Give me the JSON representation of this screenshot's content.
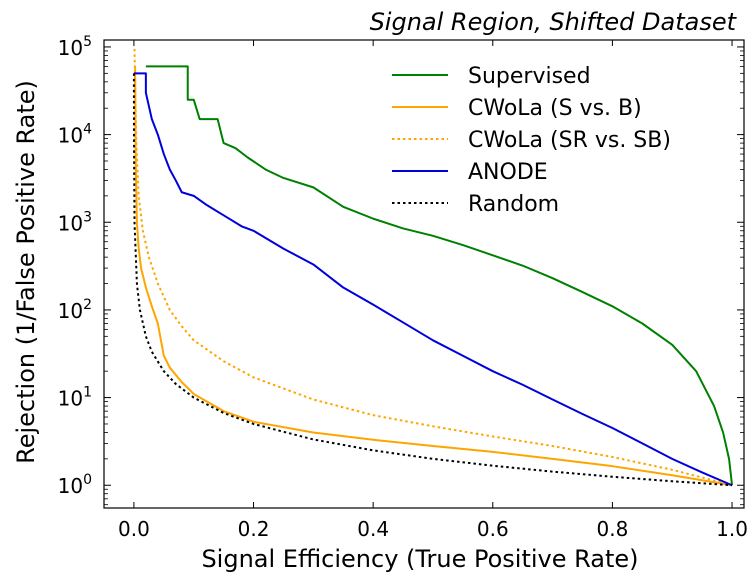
{
  "chart_data": {
    "type": "line",
    "title": "Signal Region, Shifted Dataset",
    "xlabel": "Signal Efficiency (True Positive Rate)",
    "ylabel": "Rejection (1/False Positive Rate)",
    "xlim": [
      -0.05,
      1.02
    ],
    "ylim": [
      0.55,
      120000
    ],
    "yscale": "log",
    "grid": false,
    "legend_position": "top-right",
    "x_ticks": [
      {
        "value": 0.0,
        "label": "0.0"
      },
      {
        "value": 0.2,
        "label": "0.2"
      },
      {
        "value": 0.4,
        "label": "0.4"
      },
      {
        "value": 0.6,
        "label": "0.6"
      },
      {
        "value": 0.8,
        "label": "0.8"
      },
      {
        "value": 1.0,
        "label": "1.0"
      }
    ],
    "y_ticks": [
      {
        "value": 1,
        "base": "10",
        "exp": "0"
      },
      {
        "value": 10,
        "base": "10",
        "exp": "1"
      },
      {
        "value": 100,
        "base": "10",
        "exp": "2"
      },
      {
        "value": 1000,
        "base": "10",
        "exp": "3"
      },
      {
        "value": 10000,
        "base": "10",
        "exp": "4"
      },
      {
        "value": 100000,
        "base": "10",
        "exp": "5"
      }
    ],
    "series": [
      {
        "name": "Supervised",
        "color": "#008000",
        "style": "solid",
        "points": [
          [
            0.02,
            60000
          ],
          [
            0.09,
            60000
          ],
          [
            0.09,
            25000
          ],
          [
            0.1,
            25000
          ],
          [
            0.11,
            15000
          ],
          [
            0.14,
            15000
          ],
          [
            0.15,
            8000
          ],
          [
            0.17,
            7000
          ],
          [
            0.19,
            5500
          ],
          [
            0.22,
            4000
          ],
          [
            0.25,
            3200
          ],
          [
            0.3,
            2500
          ],
          [
            0.35,
            1500
          ],
          [
            0.4,
            1100
          ],
          [
            0.45,
            850
          ],
          [
            0.5,
            700
          ],
          [
            0.55,
            550
          ],
          [
            0.6,
            420
          ],
          [
            0.65,
            320
          ],
          [
            0.7,
            230
          ],
          [
            0.75,
            160
          ],
          [
            0.8,
            110
          ],
          [
            0.85,
            70
          ],
          [
            0.9,
            40
          ],
          [
            0.94,
            20
          ],
          [
            0.97,
            8
          ],
          [
            0.985,
            4
          ],
          [
            0.995,
            2
          ],
          [
            1.0,
            1
          ]
        ]
      },
      {
        "name": "CWoLa (S vs. B)",
        "color": "#FFA500",
        "style": "solid",
        "points": [
          [
            0.002,
            60000
          ],
          [
            0.003,
            5000
          ],
          [
            0.005,
            1000
          ],
          [
            0.008,
            500
          ],
          [
            0.012,
            300
          ],
          [
            0.02,
            180
          ],
          [
            0.03,
            110
          ],
          [
            0.04,
            70
          ],
          [
            0.05,
            30
          ],
          [
            0.06,
            22
          ],
          [
            0.08,
            15
          ],
          [
            0.1,
            11
          ],
          [
            0.15,
            7
          ],
          [
            0.2,
            5.3
          ],
          [
            0.3,
            4.0
          ],
          [
            0.4,
            3.3
          ],
          [
            0.5,
            2.8
          ],
          [
            0.6,
            2.4
          ],
          [
            0.7,
            2.0
          ],
          [
            0.8,
            1.65
          ],
          [
            0.9,
            1.3
          ],
          [
            1.0,
            1
          ]
        ]
      },
      {
        "name": "CWoLa (SR vs. SB)",
        "color": "#FFA500",
        "style": "dotted",
        "points": [
          [
            0.001,
            95000
          ],
          [
            0.002,
            40000
          ],
          [
            0.004,
            8000
          ],
          [
            0.008,
            2000
          ],
          [
            0.015,
            800
          ],
          [
            0.025,
            400
          ],
          [
            0.04,
            200
          ],
          [
            0.06,
            100
          ],
          [
            0.08,
            65
          ],
          [
            0.1,
            45
          ],
          [
            0.15,
            26
          ],
          [
            0.2,
            17
          ],
          [
            0.3,
            9.5
          ],
          [
            0.4,
            6.3
          ],
          [
            0.5,
            4.7
          ],
          [
            0.6,
            3.6
          ],
          [
            0.7,
            2.8
          ],
          [
            0.8,
            2.1
          ],
          [
            0.9,
            1.5
          ],
          [
            1.0,
            1
          ]
        ]
      },
      {
        "name": "ANODE",
        "color": "#0000DD",
        "style": "solid",
        "points": [
          [
            0.0,
            50000
          ],
          [
            0.02,
            50000
          ],
          [
            0.02,
            30000
          ],
          [
            0.03,
            15000
          ],
          [
            0.04,
            10000
          ],
          [
            0.05,
            6000
          ],
          [
            0.06,
            4000
          ],
          [
            0.07,
            3000
          ],
          [
            0.08,
            2200
          ],
          [
            0.1,
            2000
          ],
          [
            0.12,
            1600
          ],
          [
            0.15,
            1200
          ],
          [
            0.18,
            900
          ],
          [
            0.2,
            800
          ],
          [
            0.25,
            500
          ],
          [
            0.3,
            330
          ],
          [
            0.35,
            180
          ],
          [
            0.4,
            115
          ],
          [
            0.45,
            72
          ],
          [
            0.5,
            45
          ],
          [
            0.55,
            30
          ],
          [
            0.6,
            20
          ],
          [
            0.65,
            14
          ],
          [
            0.7,
            9.5
          ],
          [
            0.75,
            6.5
          ],
          [
            0.8,
            4.5
          ],
          [
            0.85,
            3.0
          ],
          [
            0.9,
            2.0
          ],
          [
            0.95,
            1.4
          ],
          [
            1.0,
            1
          ]
        ]
      },
      {
        "name": "Random",
        "color": "#000000",
        "style": "dotted",
        "points": [
          [
            2e-05,
            50000
          ],
          [
            0.0001,
            10000
          ],
          [
            0.001,
            1000
          ],
          [
            0.005,
            200
          ],
          [
            0.01,
            100
          ],
          [
            0.02,
            50
          ],
          [
            0.03,
            33.3
          ],
          [
            0.05,
            20
          ],
          [
            0.07,
            14.3
          ],
          [
            0.1,
            10
          ],
          [
            0.15,
            6.67
          ],
          [
            0.2,
            5
          ],
          [
            0.3,
            3.33
          ],
          [
            0.4,
            2.5
          ],
          [
            0.5,
            2
          ],
          [
            0.6,
            1.67
          ],
          [
            0.7,
            1.43
          ],
          [
            0.8,
            1.25
          ],
          [
            0.9,
            1.11
          ],
          [
            1.0,
            1
          ]
        ]
      }
    ]
  }
}
